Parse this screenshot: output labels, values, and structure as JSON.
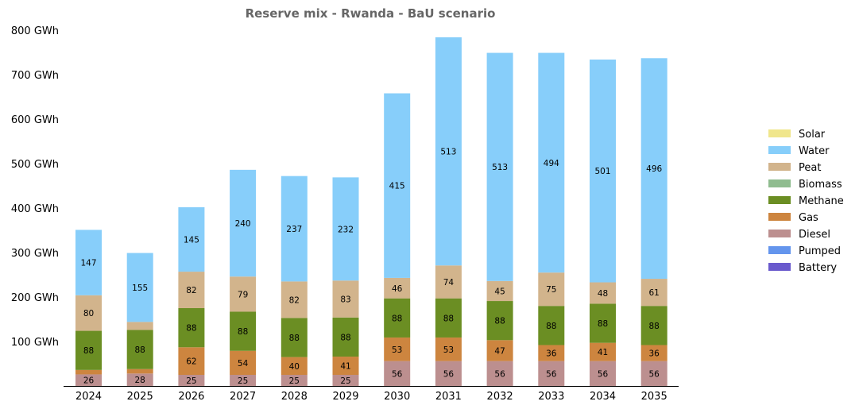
{
  "chart_data": {
    "type": "bar",
    "stacked": true,
    "title": "Reserve mix - Rwanda - BaU scenario",
    "xlabel": "",
    "ylabel": "",
    "categories": [
      "2024",
      "2025",
      "2026",
      "2027",
      "2028",
      "2029",
      "2030",
      "2031",
      "2032",
      "2033",
      "2034",
      "2035"
    ],
    "yticks": [
      "100 GWh",
      "200 GWh",
      "300 GWh",
      "400 GWh",
      "500 GWh",
      "600 GWh",
      "700 GWh",
      "800 GWh"
    ],
    "ylim": [
      0,
      800
    ],
    "grid": false,
    "legend_position": "right",
    "legend": [
      "Solar",
      "Water",
      "Peat",
      "Biomass",
      "Methane",
      "Gas",
      "Diesel",
      "Pumped",
      "Battery"
    ],
    "series": [
      {
        "name": "Diesel",
        "color": "#bc8f8f",
        "values": [
          26,
          28,
          25,
          25,
          25,
          25,
          56,
          56,
          56,
          56,
          56,
          56
        ],
        "labels": [
          "26",
          "28",
          "25",
          "25",
          "25",
          "25",
          "56",
          "56",
          "56",
          "56",
          "56",
          "56"
        ]
      },
      {
        "name": "Gas",
        "color": "#cd853f",
        "values": [
          10,
          10,
          62,
          54,
          40,
          41,
          53,
          53,
          47,
          36,
          41,
          36
        ],
        "labels": [
          "",
          "",
          "62",
          "54",
          "40",
          "41",
          "53",
          "53",
          "47",
          "36",
          "41",
          "36"
        ]
      },
      {
        "name": "Methane",
        "color": "#6b8e23",
        "values": [
          88,
          88,
          88,
          88,
          88,
          88,
          88,
          88,
          88,
          88,
          88,
          88
        ],
        "labels": [
          "88",
          "88",
          "88",
          "88",
          "88",
          "88",
          "88",
          "88",
          "88",
          "88",
          "88",
          "88"
        ]
      },
      {
        "name": "Biomass",
        "color": "#8fbc8f",
        "values": [
          0,
          0,
          0,
          0,
          0,
          0,
          0,
          0,
          0,
          0,
          0,
          0
        ],
        "labels": [
          "",
          "",
          "",
          "",
          "",
          "",
          "",
          "",
          "",
          "",
          "",
          ""
        ]
      },
      {
        "name": "Peat",
        "color": "#d2b48c",
        "values": [
          80,
          18,
          82,
          79,
          82,
          83,
          46,
          74,
          45,
          75,
          48,
          61
        ],
        "labels": [
          "80",
          "",
          "82",
          "79",
          "82",
          "83",
          "46",
          "74",
          "45",
          "75",
          "48",
          "61"
        ]
      },
      {
        "name": "Water",
        "color": "#87cefa",
        "values": [
          147,
          155,
          145,
          240,
          237,
          232,
          415,
          513,
          513,
          494,
          501,
          496
        ],
        "labels": [
          "147",
          "155",
          "145",
          "240",
          "237",
          "232",
          "415",
          "513",
          "513",
          "494",
          "501",
          "496"
        ]
      },
      {
        "name": "Solar",
        "color": "#f0e68c",
        "values": [
          0,
          0,
          0,
          0,
          0,
          0,
          0,
          0,
          0,
          0,
          0,
          0
        ],
        "labels": [
          "",
          "",
          "",
          "",
          "",
          "",
          "",
          "",
          "",
          "",
          "",
          ""
        ]
      },
      {
        "name": "Pumped",
        "color": "#6495ed",
        "values": [
          0,
          0,
          0,
          0,
          0,
          0,
          0,
          0,
          0,
          0,
          0,
          0
        ],
        "labels": [
          "",
          "",
          "",
          "",
          "",
          "",
          "",
          "",
          "",
          "",
          "",
          ""
        ]
      },
      {
        "name": "Battery",
        "color": "#6a5acd",
        "values": [
          0,
          0,
          0,
          0,
          0,
          0,
          0,
          0,
          0,
          0,
          0,
          0
        ],
        "labels": [
          "",
          "",
          "",
          "",
          "",
          "",
          "",
          "",
          "",
          "",
          "",
          ""
        ]
      }
    ]
  }
}
